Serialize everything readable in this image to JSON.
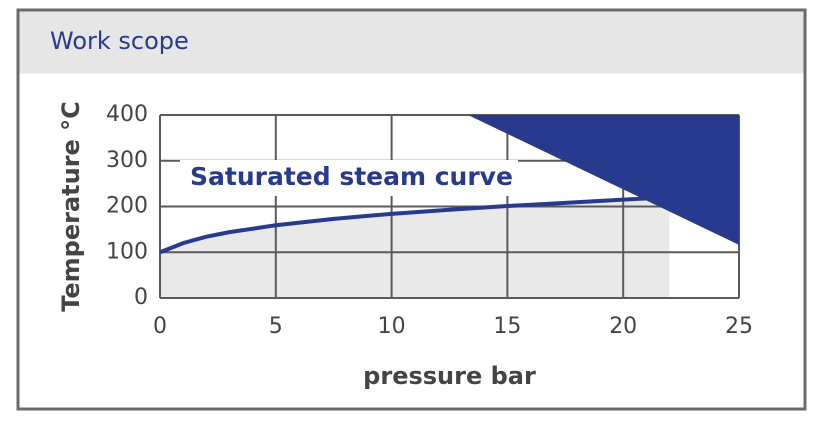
{
  "header": {
    "title": "Work scope"
  },
  "chart_data": {
    "type": "line",
    "x_label": "pressure bar",
    "y_label": "Temperature °C",
    "annotation": "Saturated steam curve",
    "xlim": [
      0,
      25
    ],
    "ylim": [
      0,
      400
    ],
    "xticks": [
      0,
      5,
      10,
      15,
      20,
      25
    ],
    "yticks": [
      0,
      100,
      200,
      300,
      400
    ],
    "grid": true,
    "series": [
      {
        "name": "Saturated steam curve",
        "color": "#283a8e",
        "fill": "#e9e9e9",
        "x": [
          0,
          1,
          2,
          3,
          5,
          7.5,
          10,
          12.5,
          15,
          17.5,
          20,
          22
        ],
        "values": [
          100,
          120,
          134,
          144,
          159,
          173,
          184,
          193,
          201,
          208,
          215,
          220
        ]
      },
      {
        "color": "#283a8e",
        "x": [
          13.3,
          25,
          25
        ],
        "values": [
          400,
          400,
          116
        ]
      }
    ]
  }
}
